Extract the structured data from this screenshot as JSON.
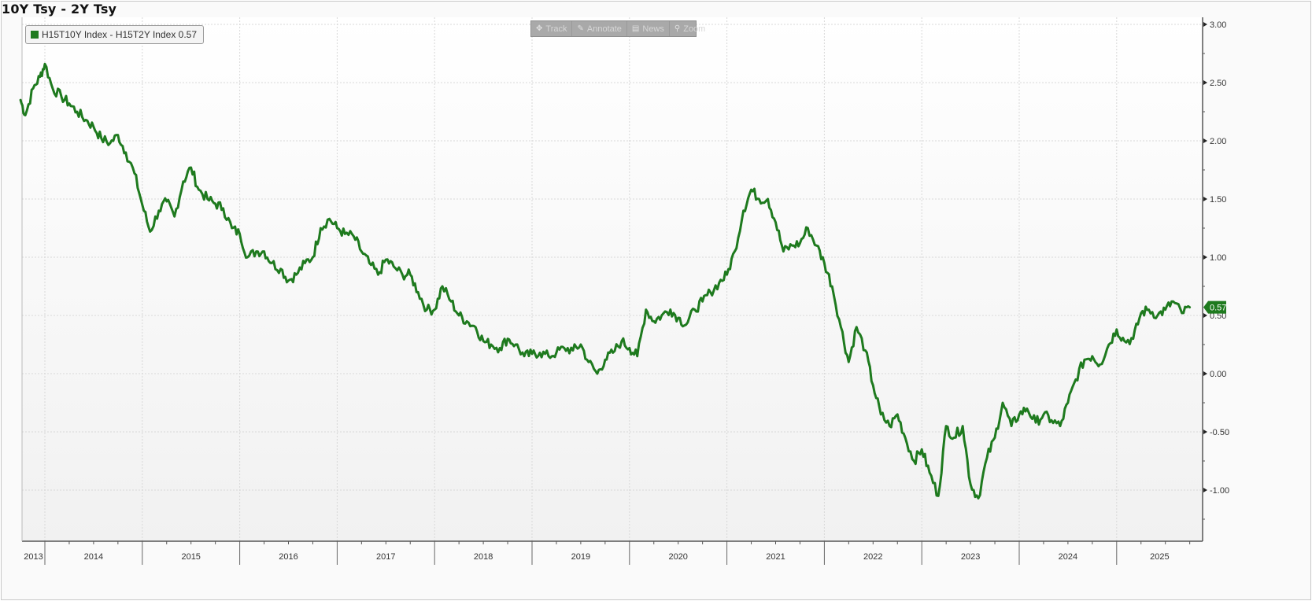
{
  "header": {
    "title": "10Y Tsy - 2Y Tsy"
  },
  "legend": {
    "label": "H15T10Y Index - H15T2Y Index 0.57",
    "color": "#1e7a1e"
  },
  "toolbar": {
    "buttons": [
      {
        "label": "Track",
        "icon": "crosshair-icon",
        "glyph": "✥"
      },
      {
        "label": "Annotate",
        "icon": "pencil-icon",
        "glyph": "✎"
      },
      {
        "label": "News",
        "icon": "news-icon",
        "glyph": "▤"
      },
      {
        "label": "Zoom",
        "icon": "magnifier-icon",
        "glyph": "⚲"
      }
    ]
  },
  "last_value_badge": {
    "label": "0.57",
    "color": "#1e7a1e"
  },
  "colors": {
    "line": "#1e7a1e",
    "grid": "#d8d8d8",
    "axis": "#555555",
    "background": "#fafafa"
  },
  "chart_data": {
    "type": "line",
    "title": "10Y Tsy - 2Y Tsy",
    "xlabel": "",
    "ylabel": "",
    "ylim": [
      -1.45,
      3.05
    ],
    "y_ticks": [
      "3.00",
      "2.50",
      "2.00",
      "1.50",
      "1.00",
      "0.50",
      "0.00",
      "-0.50",
      "-1.00"
    ],
    "x_ticks": [
      "2013",
      "2014",
      "2015",
      "2016",
      "2017",
      "2018",
      "2019",
      "2020",
      "2021",
      "2022",
      "2023",
      "2024",
      "2025"
    ],
    "grid": true,
    "legend_position": "top-left",
    "series": [
      {
        "name": "H15T10Y Index - H15T2Y Index",
        "last_value": 0.57,
        "points": [
          {
            "x": 2013.75,
            "y": 2.35
          },
          {
            "x": 2013.8,
            "y": 2.22
          },
          {
            "x": 2013.88,
            "y": 2.45
          },
          {
            "x": 2013.95,
            "y": 2.55
          },
          {
            "x": 2014.0,
            "y": 2.66
          },
          {
            "x": 2014.08,
            "y": 2.45
          },
          {
            "x": 2014.17,
            "y": 2.38
          },
          {
            "x": 2014.25,
            "y": 2.32
          },
          {
            "x": 2014.33,
            "y": 2.25
          },
          {
            "x": 2014.42,
            "y": 2.18
          },
          {
            "x": 2014.5,
            "y": 2.12
          },
          {
            "x": 2014.58,
            "y": 2.02
          },
          {
            "x": 2014.67,
            "y": 1.98
          },
          {
            "x": 2014.75,
            "y": 2.05
          },
          {
            "x": 2014.83,
            "y": 1.9
          },
          {
            "x": 2014.92,
            "y": 1.72
          },
          {
            "x": 2015.0,
            "y": 1.45
          },
          {
            "x": 2015.08,
            "y": 1.22
          },
          {
            "x": 2015.17,
            "y": 1.4
          },
          {
            "x": 2015.25,
            "y": 1.48
          },
          {
            "x": 2015.33,
            "y": 1.35
          },
          {
            "x": 2015.42,
            "y": 1.65
          },
          {
            "x": 2015.5,
            "y": 1.77
          },
          {
            "x": 2015.58,
            "y": 1.58
          },
          {
            "x": 2015.67,
            "y": 1.5
          },
          {
            "x": 2015.75,
            "y": 1.46
          },
          {
            "x": 2015.83,
            "y": 1.42
          },
          {
            "x": 2015.92,
            "y": 1.25
          },
          {
            "x": 2016.0,
            "y": 1.2
          },
          {
            "x": 2016.08,
            "y": 1.0
          },
          {
            "x": 2016.17,
            "y": 1.05
          },
          {
            "x": 2016.25,
            "y": 1.05
          },
          {
            "x": 2016.33,
            "y": 0.95
          },
          {
            "x": 2016.42,
            "y": 0.9
          },
          {
            "x": 2016.5,
            "y": 0.8
          },
          {
            "x": 2016.58,
            "y": 0.85
          },
          {
            "x": 2016.67,
            "y": 0.95
          },
          {
            "x": 2016.75,
            "y": 1.0
          },
          {
            "x": 2016.83,
            "y": 1.25
          },
          {
            "x": 2016.92,
            "y": 1.33
          },
          {
            "x": 2017.0,
            "y": 1.25
          },
          {
            "x": 2017.08,
            "y": 1.2
          },
          {
            "x": 2017.17,
            "y": 1.18
          },
          {
            "x": 2017.25,
            "y": 1.05
          },
          {
            "x": 2017.33,
            "y": 0.95
          },
          {
            "x": 2017.42,
            "y": 0.85
          },
          {
            "x": 2017.5,
            "y": 0.98
          },
          {
            "x": 2017.58,
            "y": 0.92
          },
          {
            "x": 2017.67,
            "y": 0.85
          },
          {
            "x": 2017.75,
            "y": 0.85
          },
          {
            "x": 2017.83,
            "y": 0.7
          },
          {
            "x": 2017.92,
            "y": 0.55
          },
          {
            "x": 2018.0,
            "y": 0.55
          },
          {
            "x": 2018.08,
            "y": 0.75
          },
          {
            "x": 2018.17,
            "y": 0.62
          },
          {
            "x": 2018.25,
            "y": 0.5
          },
          {
            "x": 2018.33,
            "y": 0.45
          },
          {
            "x": 2018.42,
            "y": 0.4
          },
          {
            "x": 2018.5,
            "y": 0.28
          },
          {
            "x": 2018.58,
            "y": 0.25
          },
          {
            "x": 2018.67,
            "y": 0.22
          },
          {
            "x": 2018.75,
            "y": 0.3
          },
          {
            "x": 2018.83,
            "y": 0.25
          },
          {
            "x": 2018.92,
            "y": 0.15
          },
          {
            "x": 2019.0,
            "y": 0.17
          },
          {
            "x": 2019.08,
            "y": 0.18
          },
          {
            "x": 2019.17,
            "y": 0.15
          },
          {
            "x": 2019.25,
            "y": 0.18
          },
          {
            "x": 2019.33,
            "y": 0.22
          },
          {
            "x": 2019.42,
            "y": 0.2
          },
          {
            "x": 2019.5,
            "y": 0.25
          },
          {
            "x": 2019.58,
            "y": 0.1
          },
          {
            "x": 2019.67,
            "y": 0.0
          },
          {
            "x": 2019.75,
            "y": 0.12
          },
          {
            "x": 2019.83,
            "y": 0.18
          },
          {
            "x": 2019.92,
            "y": 0.28
          },
          {
            "x": 2020.0,
            "y": 0.22
          },
          {
            "x": 2020.08,
            "y": 0.15
          },
          {
            "x": 2020.17,
            "y": 0.55
          },
          {
            "x": 2020.25,
            "y": 0.45
          },
          {
            "x": 2020.33,
            "y": 0.5
          },
          {
            "x": 2020.42,
            "y": 0.55
          },
          {
            "x": 2020.5,
            "y": 0.48
          },
          {
            "x": 2020.58,
            "y": 0.42
          },
          {
            "x": 2020.67,
            "y": 0.55
          },
          {
            "x": 2020.75,
            "y": 0.62
          },
          {
            "x": 2020.83,
            "y": 0.7
          },
          {
            "x": 2020.92,
            "y": 0.78
          },
          {
            "x": 2021.0,
            "y": 0.85
          },
          {
            "x": 2021.08,
            "y": 1.05
          },
          {
            "x": 2021.17,
            "y": 1.4
          },
          {
            "x": 2021.25,
            "y": 1.58
          },
          {
            "x": 2021.33,
            "y": 1.5
          },
          {
            "x": 2021.42,
            "y": 1.5
          },
          {
            "x": 2021.5,
            "y": 1.3
          },
          {
            "x": 2021.58,
            "y": 1.05
          },
          {
            "x": 2021.67,
            "y": 1.1
          },
          {
            "x": 2021.75,
            "y": 1.12
          },
          {
            "x": 2021.83,
            "y": 1.25
          },
          {
            "x": 2021.92,
            "y": 1.1
          },
          {
            "x": 2022.0,
            "y": 0.95
          },
          {
            "x": 2022.08,
            "y": 0.75
          },
          {
            "x": 2022.17,
            "y": 0.4
          },
          {
            "x": 2022.25,
            "y": 0.1
          },
          {
            "x": 2022.33,
            "y": 0.4
          },
          {
            "x": 2022.42,
            "y": 0.2
          },
          {
            "x": 2022.5,
            "y": -0.1
          },
          {
            "x": 2022.58,
            "y": -0.35
          },
          {
            "x": 2022.67,
            "y": -0.45
          },
          {
            "x": 2022.75,
            "y": -0.35
          },
          {
            "x": 2022.83,
            "y": -0.55
          },
          {
            "x": 2022.92,
            "y": -0.75
          },
          {
            "x": 2023.0,
            "y": -0.65
          },
          {
            "x": 2023.08,
            "y": -0.85
          },
          {
            "x": 2023.17,
            "y": -1.05
          },
          {
            "x": 2023.25,
            "y": -0.45
          },
          {
            "x": 2023.33,
            "y": -0.55
          },
          {
            "x": 2023.42,
            "y": -0.45
          },
          {
            "x": 2023.5,
            "y": -0.95
          },
          {
            "x": 2023.58,
            "y": -1.07
          },
          {
            "x": 2023.67,
            "y": -0.72
          },
          {
            "x": 2023.75,
            "y": -0.55
          },
          {
            "x": 2023.83,
            "y": -0.25
          },
          {
            "x": 2023.92,
            "y": -0.45
          },
          {
            "x": 2024.0,
            "y": -0.35
          },
          {
            "x": 2024.08,
            "y": -0.3
          },
          {
            "x": 2024.17,
            "y": -0.42
          },
          {
            "x": 2024.25,
            "y": -0.35
          },
          {
            "x": 2024.33,
            "y": -0.4
          },
          {
            "x": 2024.42,
            "y": -0.45
          },
          {
            "x": 2024.5,
            "y": -0.25
          },
          {
            "x": 2024.58,
            "y": -0.05
          },
          {
            "x": 2024.67,
            "y": 0.12
          },
          {
            "x": 2024.75,
            "y": 0.15
          },
          {
            "x": 2024.83,
            "y": 0.08
          },
          {
            "x": 2024.92,
            "y": 0.25
          },
          {
            "x": 2025.0,
            "y": 0.38
          },
          {
            "x": 2025.08,
            "y": 0.28
          },
          {
            "x": 2025.17,
            "y": 0.3
          },
          {
            "x": 2025.25,
            "y": 0.52
          },
          {
            "x": 2025.33,
            "y": 0.55
          },
          {
            "x": 2025.42,
            "y": 0.5
          },
          {
            "x": 2025.5,
            "y": 0.55
          },
          {
            "x": 2025.58,
            "y": 0.62
          },
          {
            "x": 2025.67,
            "y": 0.52
          },
          {
            "x": 2025.75,
            "y": 0.57
          }
        ]
      }
    ]
  }
}
